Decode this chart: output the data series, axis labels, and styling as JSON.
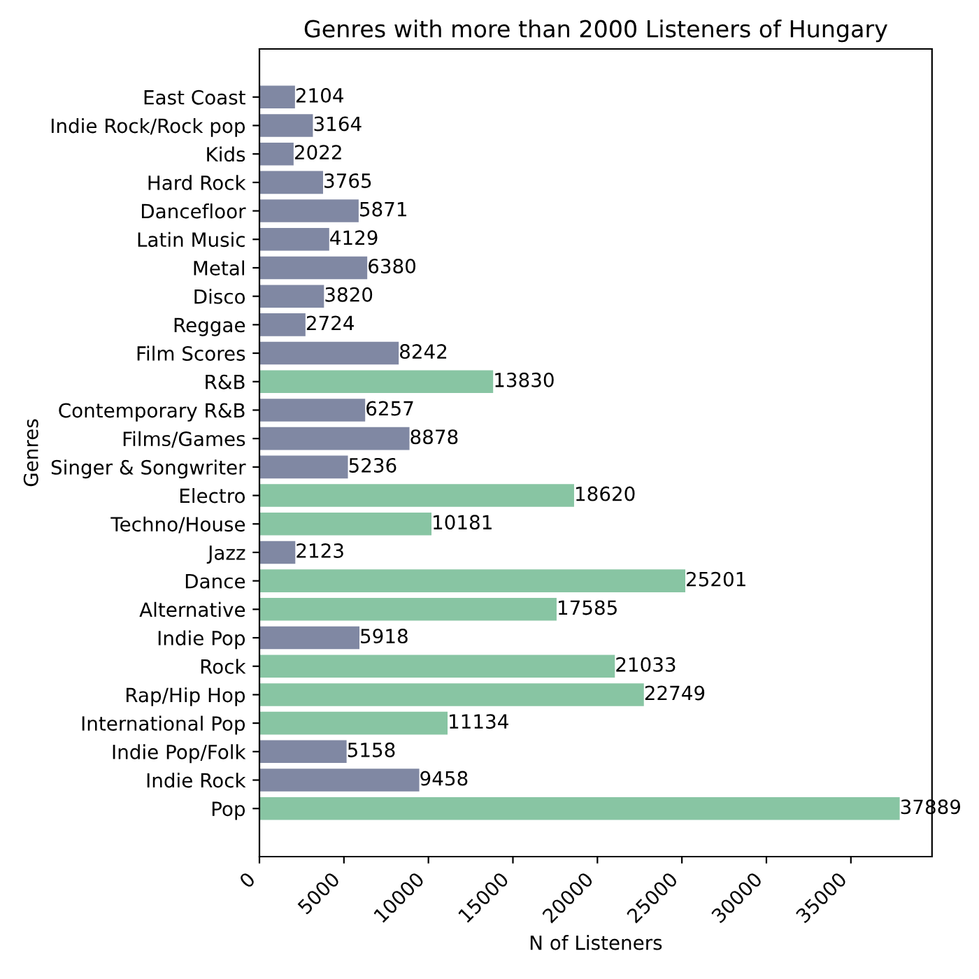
{
  "chart_data": {
    "type": "bar",
    "orientation": "horizontal",
    "title": "Genres with more than 2000 Listeners of Hungary",
    "xlabel": "N of Listeners",
    "ylabel": "Genres",
    "categories": [
      "East Coast",
      "Indie Rock/Rock pop",
      "Kids",
      "Hard Rock",
      "Dancefloor",
      "Latin Music",
      "Metal",
      "Disco",
      "Reggae",
      "Film Scores",
      "R&B",
      "Contemporary R&B",
      "Films/Games",
      "Singer & Songwriter",
      "Electro",
      "Techno/House",
      "Jazz",
      "Dance",
      "Alternative",
      "Indie Pop",
      "Rock",
      "Rap/Hip Hop",
      "International Pop",
      "Indie Pop/Folk",
      "Indie Rock",
      "Pop"
    ],
    "values": [
      2104,
      3164,
      2022,
      3765,
      5871,
      4129,
      6380,
      3820,
      2724,
      8242,
      13830,
      6257,
      8878,
      5236,
      18620,
      10181,
      2123,
      25201,
      17585,
      5918,
      21033,
      22749,
      11134,
      5158,
      9458,
      37889
    ],
    "colors": [
      "#8088a3",
      "#8088a3",
      "#8088a3",
      "#8088a3",
      "#8088a3",
      "#8088a3",
      "#8088a3",
      "#8088a3",
      "#8088a3",
      "#8088a3",
      "#88c5a3",
      "#8088a3",
      "#8088a3",
      "#8088a3",
      "#88c5a3",
      "#88c5a3",
      "#8088a3",
      "#88c5a3",
      "#88c5a3",
      "#8088a3",
      "#88c5a3",
      "#88c5a3",
      "#88c5a3",
      "#8088a3",
      "#8088a3",
      "#88c5a3"
    ],
    "xlim": [
      0,
      39800
    ],
    "xticks": [
      0,
      5000,
      10000,
      15000,
      20000,
      25000,
      30000,
      35000
    ],
    "data_labels": true,
    "grid": false
  }
}
